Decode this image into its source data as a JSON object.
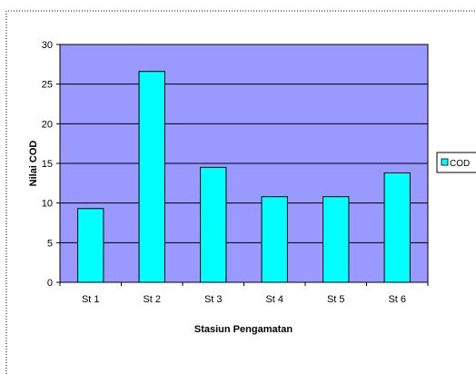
{
  "chart_data": {
    "type": "bar",
    "categories": [
      "St 1",
      "St 2",
      "St 3",
      "St 4",
      "St 5",
      "St 6"
    ],
    "series": [
      {
        "name": "COD",
        "values": [
          9.3,
          26.6,
          14.5,
          10.8,
          10.8,
          13.8
        ]
      }
    ],
    "xlabel": "Stasiun Pengamatan",
    "ylabel": "Nilai COD",
    "ylim": [
      0,
      30
    ],
    "yticks": [
      0,
      5,
      10,
      15,
      20,
      25,
      30
    ],
    "grid": true,
    "legend": "right",
    "colors": {
      "plot_area": "#9999ff",
      "bar_fill": "#00ffff",
      "bar_stroke": "#000000",
      "gridline": "#000000",
      "frame_border": "#000000"
    }
  }
}
